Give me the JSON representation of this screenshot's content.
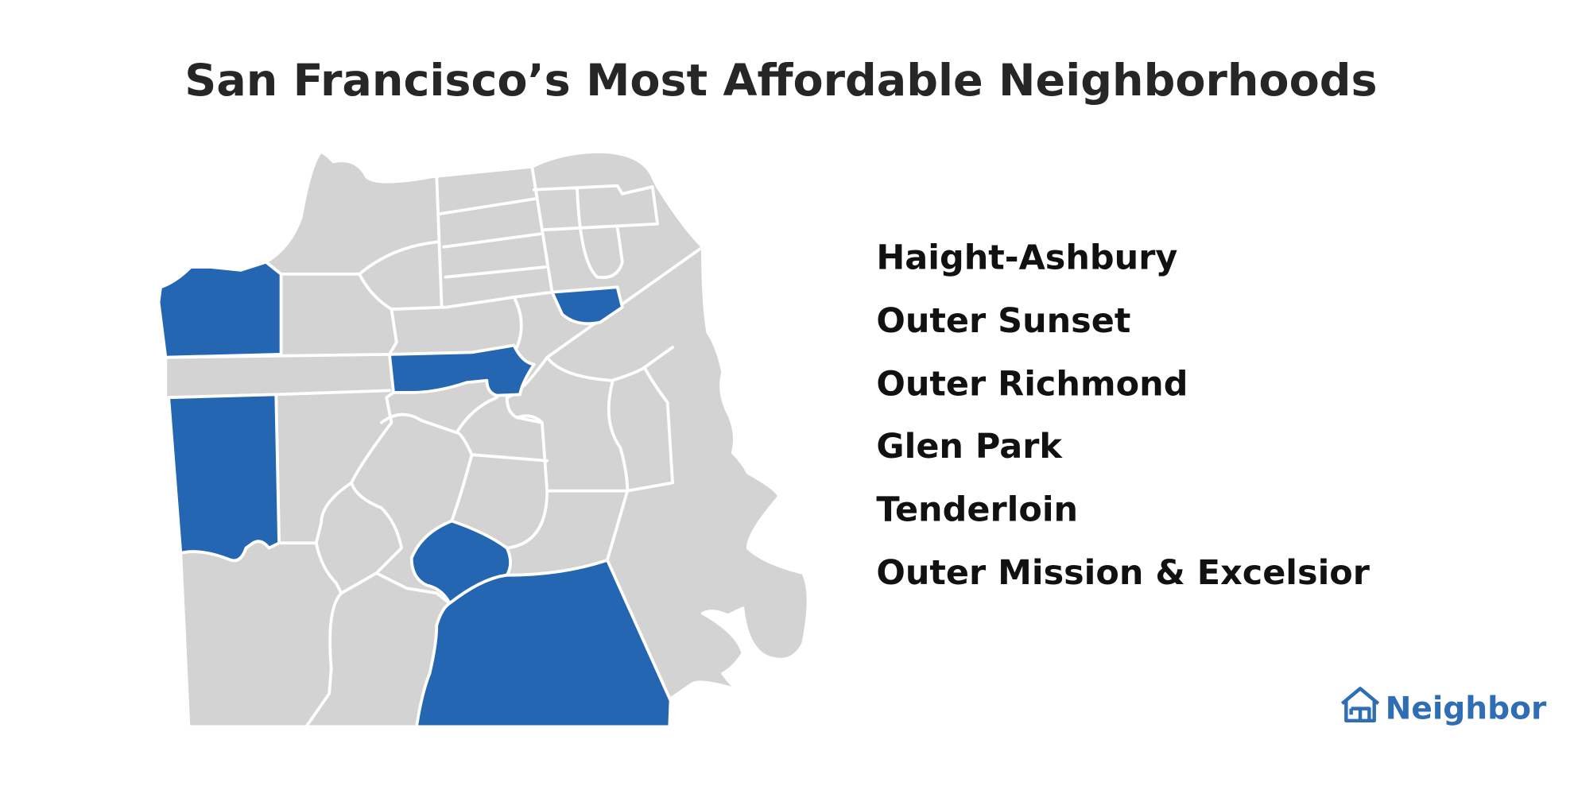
{
  "title": "San Francisco’s Most Affordable Neighborhoods",
  "neighborhoods": [
    "Haight-Ashbury",
    "Outer Sunset",
    "Outer Richmond",
    "Glen Park",
    "Tenderloin",
    "Outer Mission & Excelsior"
  ],
  "logo": {
    "text": "Neighbor"
  }
}
